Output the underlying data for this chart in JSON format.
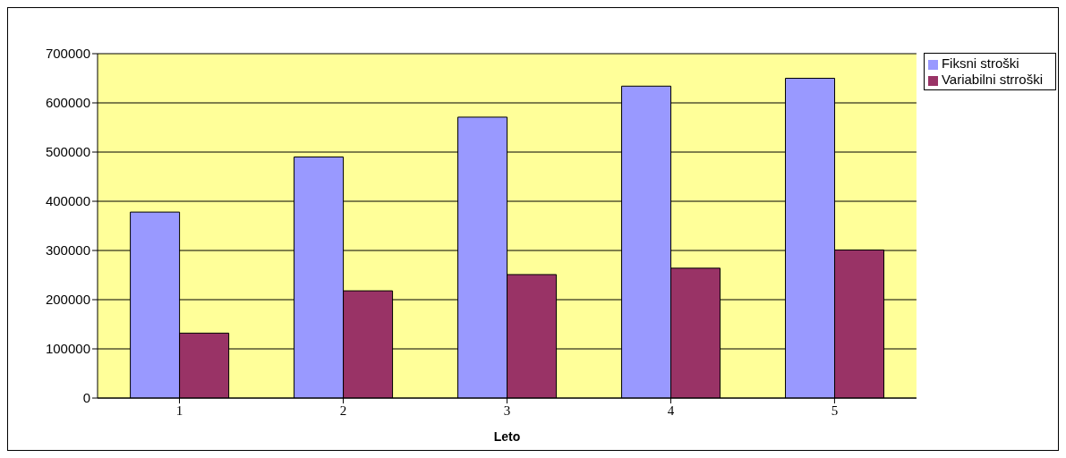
{
  "chart_data": {
    "type": "bar",
    "xlabel": "Leto",
    "categories": [
      "1",
      "2",
      "3",
      "4",
      "5"
    ],
    "series": [
      {
        "name": "Fiksni stroški",
        "color": "#9999ff",
        "values": [
          378000,
          490000,
          571000,
          634000,
          650000
        ]
      },
      {
        "name": "Variabilni strroški",
        "color": "#993366",
        "values": [
          132000,
          218000,
          251000,
          264000,
          301000
        ]
      }
    ],
    "ylim": [
      0,
      700000
    ],
    "yticks": [
      0,
      100000,
      200000,
      300000,
      400000,
      500000,
      600000,
      700000
    ],
    "grid": "y",
    "legend": "top right"
  }
}
